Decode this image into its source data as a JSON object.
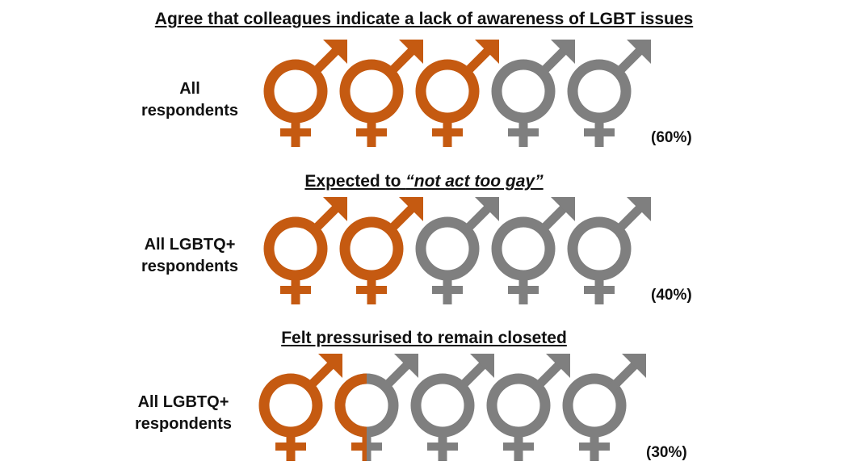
{
  "colors": {
    "filled": "#C55A11",
    "empty": "#7F7F7F"
  },
  "icon": "gender-symbol-icon",
  "chart_data": [
    {
      "type": "pictograph",
      "title": "Agree that colleagues indicate a lack of awareness of LGBT issues",
      "group_label_lines": [
        "All",
        "respondents"
      ],
      "percent_label": "(60%)",
      "value": 60,
      "icons_total": 5
    },
    {
      "type": "pictograph",
      "title_parts": [
        "Expected to ",
        "“not act too gay”"
      ],
      "group_label_lines": [
        "All LGBTQ+",
        "respondents"
      ],
      "percent_label": "(40%)",
      "value": 40,
      "icons_total": 5
    },
    {
      "type": "pictograph",
      "title": "Felt pressurised to remain closeted",
      "group_label_lines": [
        "All LGBTQ+",
        "respondents"
      ],
      "percent_label": "(30%)",
      "value": 30,
      "icons_total": 5
    }
  ]
}
